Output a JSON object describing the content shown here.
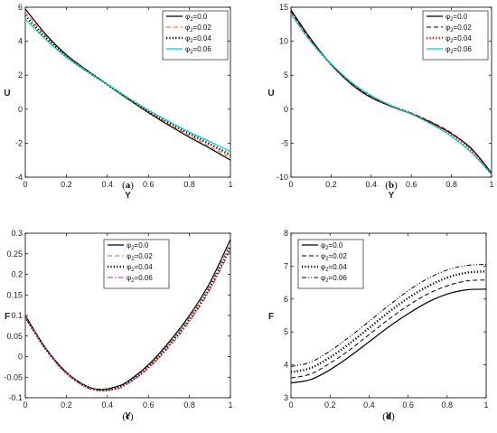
{
  "chart_data": [
    {
      "type": "line",
      "caption": "(a)",
      "xlabel": "Y",
      "ylabel": "U",
      "xlim": [
        0,
        1
      ],
      "ylim": [
        -4,
        6
      ],
      "xticks": [
        "0",
        "0.2",
        "0.4",
        "0.6",
        "0.8",
        "1"
      ],
      "yticks": [
        "-4",
        "-2",
        "0",
        "2",
        "4",
        "6"
      ],
      "legend_position": "top-right",
      "x": [
        0,
        0.1,
        0.2,
        0.3,
        0.4,
        0.5,
        0.6,
        0.7,
        0.8,
        0.9,
        1
      ],
      "series": [
        {
          "label": "=0.0",
          "color": "#000000",
          "dash": "solid",
          "values": [
            5.9,
            4.4,
            3.2,
            2.3,
            1.45,
            0.6,
            -0.2,
            -0.95,
            -1.65,
            -2.3,
            -3.0
          ]
        },
        {
          "label": "=0.02",
          "color": "#e8601c",
          "dash": "dashed",
          "values": [
            5.7,
            4.3,
            3.15,
            2.28,
            1.45,
            0.62,
            -0.15,
            -0.88,
            -1.55,
            -2.2,
            -2.85
          ]
        },
        {
          "label": "=0.04",
          "color": "#000000",
          "dash": "dotted",
          "values": [
            5.5,
            4.2,
            3.1,
            2.25,
            1.45,
            0.65,
            -0.1,
            -0.8,
            -1.45,
            -2.05,
            -2.7
          ]
        },
        {
          "label": "=0.06",
          "color": "#00cccc",
          "dash": "solid",
          "values": [
            5.3,
            4.1,
            3.05,
            2.22,
            1.45,
            0.68,
            -0.05,
            -0.72,
            -1.35,
            -1.9,
            -2.5
          ]
        }
      ]
    },
    {
      "type": "line",
      "caption": "(b)",
      "xlabel": "Y",
      "ylabel": "U",
      "xlim": [
        0,
        1
      ],
      "ylim": [
        -10,
        15
      ],
      "xticks": [
        "0",
        "0.2",
        "0.4",
        "0.6",
        "0.8",
        "1"
      ],
      "yticks": [
        "-10",
        "-5",
        "0",
        "5",
        "10",
        "15"
      ],
      "legend_position": "top-right",
      "x": [
        0,
        0.1,
        0.2,
        0.3,
        0.4,
        0.5,
        0.6,
        0.7,
        0.8,
        0.9,
        1
      ],
      "series": [
        {
          "label": "=0.0",
          "color": "#000000",
          "dash": "solid",
          "values": [
            14.6,
            10.3,
            6.6,
            3.7,
            1.7,
            0.4,
            -0.7,
            -2.0,
            -3.6,
            -5.8,
            -9.4
          ]
        },
        {
          "label": "=0.02",
          "color": "#000000",
          "dash": "dashed",
          "values": [
            14.4,
            10.1,
            6.6,
            3.8,
            1.8,
            0.5,
            -0.6,
            -1.9,
            -3.5,
            -5.9,
            -9.5
          ]
        },
        {
          "label": "=0.04",
          "color": "#e00000",
          "dash": "dotted",
          "values": [
            14.2,
            10.0,
            6.6,
            3.9,
            1.9,
            0.5,
            -0.6,
            -2.0,
            -3.7,
            -6.1,
            -9.6
          ]
        },
        {
          "label": "=0.06",
          "color": "#00cccc",
          "dash": "solid",
          "values": [
            14.0,
            9.9,
            6.7,
            4.0,
            2.0,
            0.5,
            -0.7,
            -2.2,
            -4.0,
            -6.4,
            -9.6
          ]
        }
      ]
    },
    {
      "type": "line",
      "caption": "(c)",
      "xlabel": "Y",
      "ylabel": "F",
      "xlim": [
        0,
        1
      ],
      "ylim": [
        -0.1,
        0.3
      ],
      "xticks": [
        "0",
        "0.2",
        "0.4",
        "0.6",
        "0.8",
        "1"
      ],
      "yticks": [
        "-0.1",
        "-0.05",
        "0",
        "0.05",
        "0.1",
        "0.15",
        "0.2",
        "0.25",
        "0.3"
      ],
      "legend_position": "top-center",
      "x": [
        0,
        0.1,
        0.2,
        0.3,
        0.375,
        0.45,
        0.5,
        0.6,
        0.7,
        0.8,
        0.9,
        1
      ],
      "series": [
        {
          "label": "=0.0",
          "color": "#000000",
          "dash": "solid",
          "values": [
            0.1,
            0.02,
            -0.038,
            -0.072,
            -0.08,
            -0.072,
            -0.06,
            -0.02,
            0.035,
            0.1,
            0.18,
            0.285
          ]
        },
        {
          "label": "=0.02",
          "color": "#e8601c",
          "dash": "dashed",
          "values": [
            0.098,
            0.019,
            -0.039,
            -0.073,
            -0.081,
            -0.074,
            -0.062,
            -0.023,
            0.031,
            0.095,
            0.174,
            0.276
          ]
        },
        {
          "label": "=0.04",
          "color": "#000000",
          "dash": "dotted",
          "values": [
            0.096,
            0.018,
            -0.04,
            -0.074,
            -0.082,
            -0.076,
            -0.064,
            -0.026,
            0.027,
            0.09,
            0.168,
            0.268
          ]
        },
        {
          "label": "=0.06",
          "color": "#a030b0",
          "dash": "dashdot",
          "values": [
            0.094,
            0.017,
            -0.041,
            -0.075,
            -0.083,
            -0.078,
            -0.066,
            -0.029,
            0.023,
            0.085,
            0.162,
            0.26
          ]
        }
      ]
    },
    {
      "type": "line",
      "caption": "(d)",
      "xlabel": "Y",
      "ylabel": "F",
      "xlim": [
        0,
        1
      ],
      "ylim": [
        3,
        8
      ],
      "xticks": [
        "0",
        "0.2",
        "0.4",
        "0.6",
        "0.8",
        "1"
      ],
      "yticks": [
        "3",
        "4",
        "5",
        "6",
        "7",
        "8"
      ],
      "legend_position": "top-left",
      "x": [
        0,
        0.1,
        0.2,
        0.3,
        0.4,
        0.5,
        0.6,
        0.7,
        0.8,
        0.9,
        1
      ],
      "series": [
        {
          "label": "=0.0",
          "color": "#000000",
          "dash": "solid",
          "values": [
            3.45,
            3.55,
            3.85,
            4.25,
            4.7,
            5.15,
            5.55,
            5.9,
            6.15,
            6.28,
            6.3
          ]
        },
        {
          "label": "=0.02",
          "color": "#000000",
          "dash": "dashed",
          "values": [
            3.6,
            3.72,
            4.05,
            4.45,
            4.92,
            5.38,
            5.8,
            6.15,
            6.4,
            6.55,
            6.58
          ]
        },
        {
          "label": "=0.04",
          "color": "#000000",
          "dash": "dotted",
          "values": [
            3.78,
            3.9,
            4.23,
            4.65,
            5.12,
            5.6,
            6.03,
            6.38,
            6.65,
            6.8,
            6.84
          ]
        },
        {
          "label": "=0.06",
          "color": "#000000",
          "dash": "dashdotdot",
          "values": [
            3.95,
            4.08,
            4.42,
            4.85,
            5.32,
            5.8,
            6.25,
            6.62,
            6.88,
            7.02,
            7.05
          ]
        }
      ]
    }
  ],
  "legend_symbol": "φ",
  "legend_subscript": "2"
}
